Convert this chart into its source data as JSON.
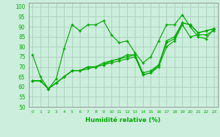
{
  "xlabel": "Humidité relative (%)",
  "bg_color": "#cceedd",
  "grid_color": "#aaccbb",
  "line_color": "#00aa00",
  "marker": "+",
  "xlim": [
    -0.5,
    23.5
  ],
  "ylim": [
    50,
    102
  ],
  "yticks": [
    50,
    55,
    60,
    65,
    70,
    75,
    80,
    85,
    90,
    95,
    100
  ],
  "xticks": [
    0,
    1,
    2,
    3,
    4,
    5,
    6,
    7,
    8,
    9,
    10,
    11,
    12,
    13,
    14,
    15,
    16,
    17,
    18,
    19,
    20,
    21,
    22,
    23
  ],
  "series": [
    [
      76,
      65,
      59,
      64,
      79,
      91,
      88,
      91,
      91,
      93,
      86,
      82,
      83,
      77,
      72,
      75,
      83,
      91,
      91,
      96,
      90,
      85,
      84,
      89
    ],
    [
      63,
      63,
      59,
      62,
      65,
      68,
      68,
      69,
      70,
      71,
      72,
      73,
      74,
      75,
      66,
      67,
      70,
      80,
      83,
      91,
      85,
      86,
      86,
      88
    ],
    [
      63,
      63,
      59,
      62,
      65,
      68,
      68,
      70,
      70,
      71,
      73,
      74,
      75,
      76,
      66,
      67,
      71,
      82,
      84,
      92,
      91,
      87,
      88,
      89
    ],
    [
      63,
      63,
      59,
      62,
      65,
      68,
      68,
      70,
      70,
      72,
      73,
      74,
      76,
      76,
      67,
      68,
      71,
      83,
      85,
      92,
      91,
      87,
      88,
      89
    ]
  ]
}
